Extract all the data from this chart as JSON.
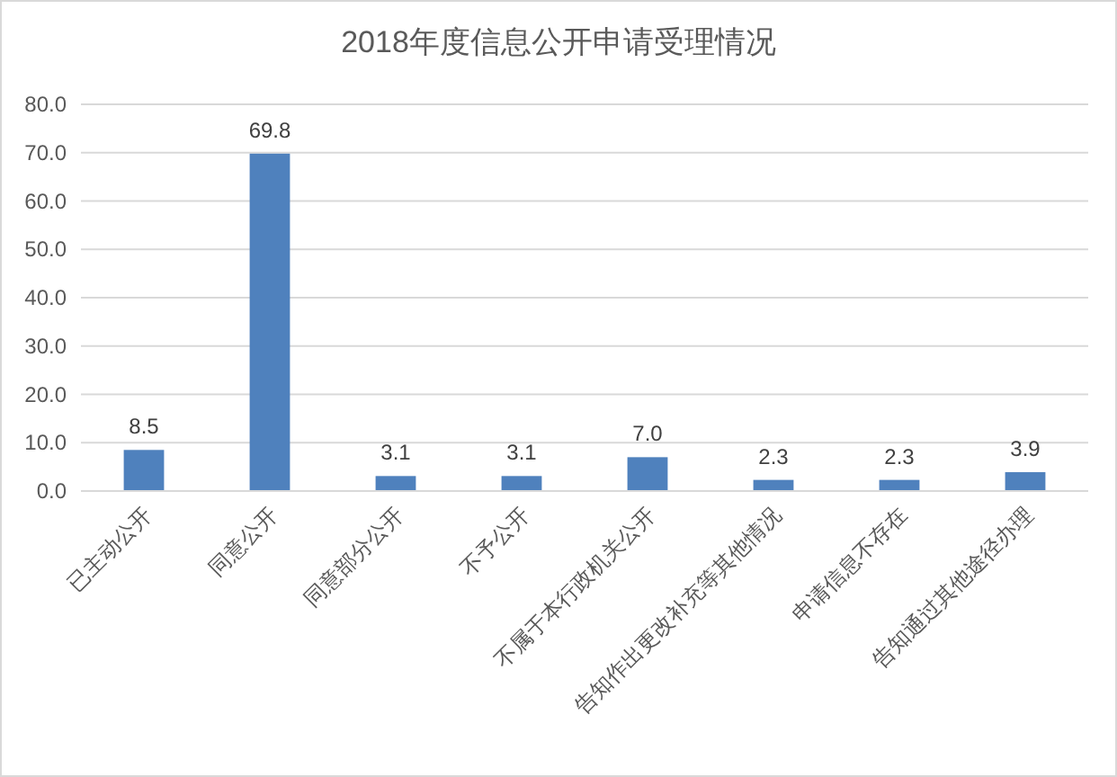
{
  "chart_data": {
    "type": "bar",
    "title": "2018年度信息公开申请受理情况",
    "categories": [
      "已主动公开",
      "同意公开",
      "同意部分公开",
      "不予公开",
      "不属于本行政机关公开",
      "告知作出更改补充等其他情况",
      "申请信息不存在",
      "告知通过其他途径办理"
    ],
    "values": [
      8.5,
      69.8,
      3.1,
      3.1,
      7.0,
      2.3,
      2.3,
      3.9
    ],
    "value_labels": [
      "8.5",
      "69.8",
      "3.1",
      "3.1",
      "7.0",
      "2.3",
      "2.3",
      "3.9"
    ],
    "color": "#4f81bd",
    "ylim": [
      0,
      80
    ],
    "yticks": [
      {
        "value": 0,
        "label": "0.0"
      },
      {
        "value": 10,
        "label": "10.0"
      },
      {
        "value": 20,
        "label": "20.0"
      },
      {
        "value": 30,
        "label": "30.0"
      },
      {
        "value": 40,
        "label": "40.0"
      },
      {
        "value": 50,
        "label": "50.0"
      },
      {
        "value": 60,
        "label": "60.0"
      },
      {
        "value": 70,
        "label": "70.0"
      },
      {
        "value": 80,
        "label": "80.0"
      }
    ],
    "grid": "y"
  }
}
